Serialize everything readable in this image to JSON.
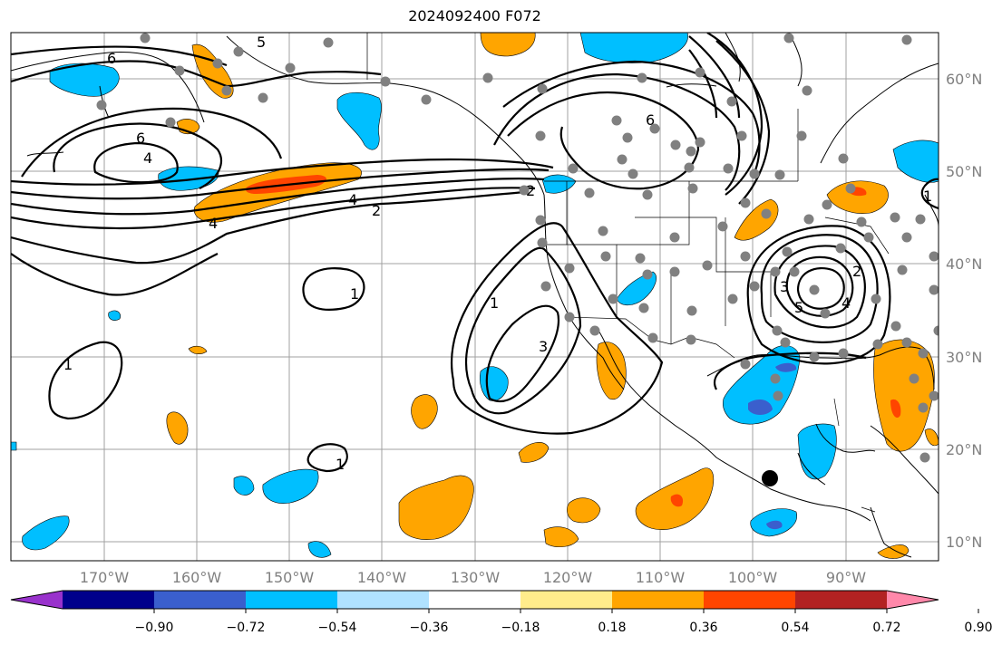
{
  "title": "2024092400 F072",
  "map": {
    "lon_range": [
      -180,
      -80
    ],
    "lat_range": [
      8,
      65
    ],
    "lon_ticks": [
      "170°W",
      "160°W",
      "150°W",
      "140°W",
      "130°W",
      "120°W",
      "110°W",
      "100°W",
      "90°W"
    ],
    "lat_ticks": [
      "60°N",
      "50°N",
      "40°N",
      "30°N",
      "20°N",
      "10°N"
    ],
    "contour_labels": [
      "6",
      "6",
      "5",
      "4",
      "4",
      "4",
      "2",
      "2",
      "6",
      "1",
      "1",
      "1",
      "3",
      "3",
      "4",
      "5",
      "2",
      "1",
      "1"
    ],
    "fill_colors": {
      "positive_light": "#ffa500",
      "positive_strong": "#ff4500",
      "negative_light": "#00bfff",
      "negative_strong": "#3a5fcd"
    },
    "station_color": "#808080",
    "marker_color": "#000000"
  },
  "colorbar": {
    "colors": [
      "#9932cc",
      "#00008b",
      "#3a5fcd",
      "#00bfff",
      "#b0e2ff",
      "#ffffff",
      "#ffec8b",
      "#ffa500",
      "#ff4500",
      "#b22222",
      "#ff88aa"
    ],
    "tick_labels": [
      "−0.90",
      "−0.72",
      "−0.54",
      "−0.36",
      "−0.18",
      "0.18",
      "0.36",
      "0.54",
      "0.72",
      "0.90"
    ]
  }
}
